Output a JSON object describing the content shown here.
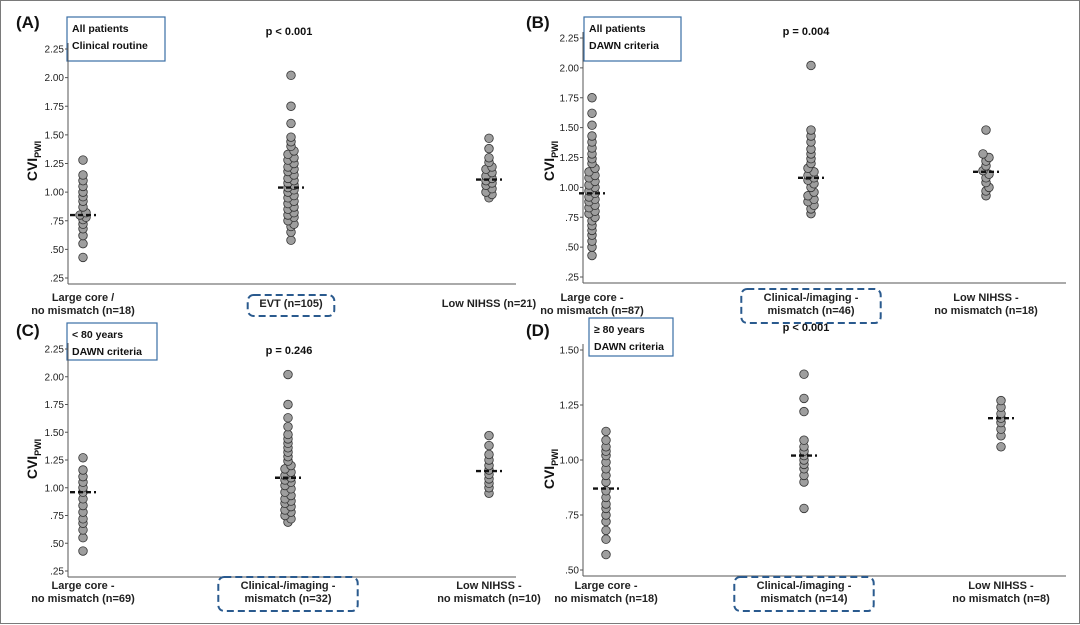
{
  "colors": {
    "point_fill": "#9e9e9e",
    "point_stroke": "#333333",
    "axis": "#555555",
    "box_border": "#3a6ea5",
    "highlight_border": "#2a5a8e",
    "median": "#111111"
  },
  "chart_data": [
    {
      "type": "scatter",
      "panel_label": "(A)",
      "info_box": [
        "All patients",
        "Clinical routine"
      ],
      "p_value": "p < 0.001",
      "ylabel": "CVI",
      "ylabel_sub": "PWI",
      "ylim": [
        0.25,
        2.25
      ],
      "yticks": [
        0.25,
        0.5,
        0.75,
        1.0,
        1.25,
        1.5,
        1.75,
        2.0,
        2.25
      ],
      "ytick_labels": [
        ".25",
        ".50",
        ".75",
        "1.00",
        "1.25",
        "1.50",
        "1.75",
        "2.00",
        "2.25"
      ],
      "categories": [
        [
          "Large core /",
          "no mismatch (n=18)"
        ],
        [
          "EVT (n=105)"
        ],
        [
          "Low NIHSS (n=21)"
        ]
      ],
      "highlighted_category": 1,
      "medians": [
        0.8,
        1.04,
        1.11
      ],
      "groups": [
        [
          0.43,
          0.55,
          0.62,
          0.68,
          0.72,
          0.76,
          0.78,
          0.8,
          0.82,
          0.87,
          0.92,
          0.96,
          1.0,
          1.05,
          1.1,
          1.15,
          1.28
        ],
        [
          0.58,
          0.65,
          0.7,
          0.72,
          0.75,
          0.78,
          0.8,
          0.82,
          0.85,
          0.87,
          0.9,
          0.92,
          0.95,
          0.97,
          1.0,
          1.02,
          1.04,
          1.06,
          1.08,
          1.1,
          1.12,
          1.15,
          1.18,
          1.2,
          1.22,
          1.25,
          1.28,
          1.3,
          1.33,
          1.36,
          1.4,
          1.44,
          1.48,
          1.6,
          1.75,
          2.02
        ],
        [
          0.95,
          0.98,
          1.0,
          1.03,
          1.06,
          1.08,
          1.1,
          1.12,
          1.14,
          1.17,
          1.2,
          1.22,
          1.26,
          1.3,
          1.38,
          1.47
        ]
      ]
    },
    {
      "type": "scatter",
      "panel_label": "(B)",
      "info_box": [
        "All patients",
        "DAWN criteria"
      ],
      "p_value": "p = 0.004",
      "ylabel": "CVI",
      "ylabel_sub": "PWI",
      "ylim": [
        0.25,
        2.25
      ],
      "yticks": [
        0.25,
        0.5,
        0.75,
        1.0,
        1.25,
        1.5,
        1.75,
        2.0,
        2.25
      ],
      "ytick_labels": [
        ".25",
        ".50",
        ".75",
        "1.00",
        "1.25",
        "1.50",
        "1.75",
        "2.00",
        "2.25"
      ],
      "categories": [
        [
          "Large core -",
          "no mismatch (n=87)"
        ],
        [
          "Clinical-/imaging -",
          "mismatch (n=46)"
        ],
        [
          "Low NIHSS -",
          "no mismatch (n=18)"
        ]
      ],
      "highlighted_category": 1,
      "medians": [
        0.95,
        1.08,
        1.13
      ],
      "groups": [
        [
          0.43,
          0.5,
          0.55,
          0.6,
          0.64,
          0.68,
          0.72,
          0.75,
          0.78,
          0.8,
          0.83,
          0.85,
          0.88,
          0.9,
          0.92,
          0.95,
          0.97,
          1.0,
          1.02,
          1.05,
          1.08,
          1.1,
          1.13,
          1.16,
          1.2,
          1.24,
          1.28,
          1.33,
          1.38,
          1.43,
          1.52,
          1.62,
          1.75
        ],
        [
          0.78,
          0.82,
          0.85,
          0.88,
          0.9,
          0.93,
          0.96,
          1.0,
          1.03,
          1.06,
          1.08,
          1.1,
          1.13,
          1.16,
          1.2,
          1.24,
          1.28,
          1.32,
          1.38,
          1.43,
          1.48,
          2.02
        ],
        [
          0.93,
          0.97,
          1.0,
          1.04,
          1.08,
          1.11,
          1.14,
          1.18,
          1.22,
          1.25,
          1.28,
          1.48
        ]
      ]
    },
    {
      "type": "scatter",
      "panel_label": "(C)",
      "info_box": [
        "< 80 years",
        "DAWN criteria"
      ],
      "p_value": "p = 0.246",
      "ylabel": "CVI",
      "ylabel_sub": "PWI",
      "ylim": [
        0.25,
        2.25
      ],
      "yticks": [
        0.25,
        0.5,
        0.75,
        1.0,
        1.25,
        1.5,
        1.75,
        2.0,
        2.25
      ],
      "ytick_labels": [
        ".25",
        ".50",
        ".75",
        "1.00",
        "1.25",
        "1.50",
        "1.75",
        "2.00",
        "2.25"
      ],
      "categories": [
        [
          "Large core -",
          "no mismatch (n=69)"
        ],
        [
          "Clinical-/imaging -",
          "mismatch (n=32)"
        ],
        [
          "Low NIHSS -",
          "no mismatch (n=10)"
        ]
      ],
      "highlighted_category": 1,
      "medians": [
        0.96,
        1.09,
        1.15
      ],
      "groups": [
        [
          0.43,
          0.55,
          0.62,
          0.68,
          0.72,
          0.78,
          0.84,
          0.9,
          0.96,
          1.0,
          1.05,
          1.1,
          1.16,
          1.27
        ],
        [
          0.69,
          0.72,
          0.75,
          0.78,
          0.8,
          0.83,
          0.86,
          0.88,
          0.9,
          0.93,
          0.96,
          0.99,
          1.02,
          1.05,
          1.07,
          1.09,
          1.11,
          1.14,
          1.17,
          1.2,
          1.24,
          1.28,
          1.32,
          1.36,
          1.4,
          1.44,
          1.48,
          1.55,
          1.63,
          1.75,
          2.02
        ],
        [
          0.95,
          1.0,
          1.04,
          1.08,
          1.12,
          1.16,
          1.2,
          1.25,
          1.3,
          1.38,
          1.47
        ]
      ]
    },
    {
      "type": "scatter",
      "panel_label": "(D)",
      "info_box": [
        "≥ 80 years",
        "DAWN criteria"
      ],
      "p_value": "p < 0.001",
      "ylabel": "CVI",
      "ylabel_sub": "PWI",
      "ylim": [
        0.5,
        1.5
      ],
      "yticks": [
        0.5,
        0.75,
        1.0,
        1.25,
        1.5
      ],
      "ytick_labels": [
        ".50",
        ".75",
        "1.00",
        "1.25",
        "1.50"
      ],
      "categories": [
        [
          "Large core -",
          "no mismatch (n=18)"
        ],
        [
          "Clinical-/imaging -",
          "mismatch (n=14)"
        ],
        [
          "Low NIHSS -",
          "no mismatch (n=8)"
        ]
      ],
      "highlighted_category": 1,
      "medians": [
        0.87,
        1.02,
        1.19
      ],
      "groups": [
        [
          0.57,
          0.64,
          0.68,
          0.72,
          0.75,
          0.78,
          0.8,
          0.83,
          0.86,
          0.9,
          0.93,
          0.96,
          0.99,
          1.02,
          1.04,
          1.06,
          1.09,
          1.13
        ],
        [
          0.78,
          0.9,
          0.93,
          0.96,
          0.98,
          1.0,
          1.02,
          1.04,
          1.06,
          1.09,
          1.22,
          1.28,
          1.39
        ],
        [
          1.06,
          1.11,
          1.14,
          1.17,
          1.19,
          1.21,
          1.24,
          1.27
        ]
      ]
    }
  ]
}
